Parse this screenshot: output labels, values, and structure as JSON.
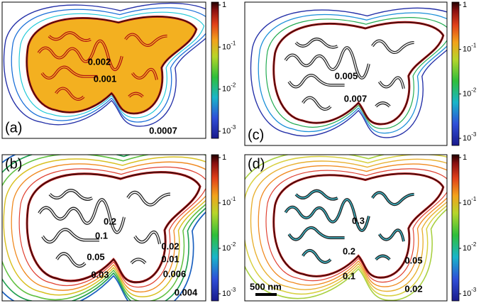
{
  "panels": [
    {
      "label": "(a)",
      "contour_labels": [
        "0.002",
        "0.001",
        "0.0007"
      ],
      "colorbar_ticks": [
        {
          "base": "1"
        },
        {
          "base": "10",
          "exponent": "-1"
        },
        {
          "base": "10",
          "exponent": "-2"
        },
        {
          "base": "10",
          "exponent": "-3"
        }
      ]
    },
    {
      "label": "(b)",
      "contour_labels": [
        "0.2",
        "0.1",
        "0.05",
        "0.03",
        "0.02",
        "0.01",
        "0.006",
        "0.004"
      ],
      "colorbar_ticks": [
        {
          "base": "1"
        },
        {
          "base": "10",
          "exponent": "-1"
        },
        {
          "base": "10",
          "exponent": "-2"
        },
        {
          "base": "10",
          "exponent": "-3"
        }
      ]
    },
    {
      "label": "(c)",
      "contour_labels": [
        "0.005",
        "0.007"
      ],
      "colorbar_ticks": [
        {
          "base": "1"
        },
        {
          "base": "10",
          "exponent": "-1"
        },
        {
          "base": "10",
          "exponent": "-2"
        },
        {
          "base": "10",
          "exponent": "-3"
        }
      ]
    },
    {
      "label": "(d)",
      "contour_labels": [
        "0.3",
        "0.2",
        "0.1",
        "0.05",
        "0.02"
      ],
      "colorbar_ticks": [
        {
          "base": "1"
        },
        {
          "base": "10",
          "exponent": "-1"
        },
        {
          "base": "10",
          "exponent": "-2"
        },
        {
          "base": "10",
          "exponent": "-3"
        }
      ],
      "scale_bar": "500 nm"
    }
  ]
}
